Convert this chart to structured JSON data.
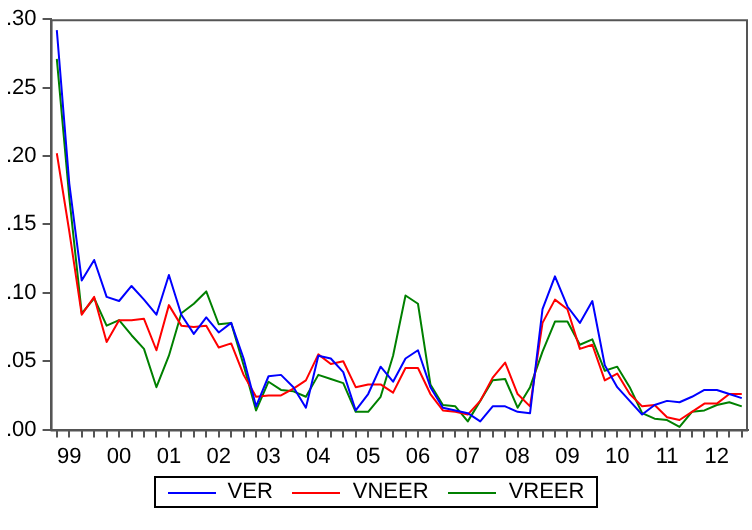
{
  "chart_data": {
    "type": "line",
    "categories": [
      null,
      "99",
      null,
      null,
      null,
      "00",
      null,
      null,
      null,
      "01",
      null,
      null,
      null,
      "02",
      null,
      null,
      null,
      "03",
      null,
      null,
      null,
      "04",
      null,
      null,
      null,
      "05",
      null,
      null,
      null,
      "06",
      null,
      null,
      null,
      "07",
      null,
      null,
      null,
      "08",
      null,
      null,
      null,
      "09",
      null,
      null,
      null,
      "10",
      null,
      null,
      null,
      "11",
      null,
      null,
      null,
      "12",
      null,
      null
    ],
    "series": [
      {
        "name": "VER",
        "color": "#0000ff",
        "values": [
          0.292,
          0.18,
          0.109,
          0.124,
          0.097,
          0.094,
          0.105,
          0.095,
          0.084,
          0.113,
          0.084,
          0.07,
          0.082,
          0.071,
          0.078,
          0.052,
          0.017,
          0.039,
          0.04,
          0.031,
          0.016,
          0.054,
          0.052,
          0.042,
          0.014,
          0.026,
          0.046,
          0.035,
          0.052,
          0.058,
          0.031,
          0.016,
          0.014,
          0.012,
          0.006,
          0.017,
          0.017,
          0.013,
          0.012,
          0.088,
          0.112,
          0.09,
          0.078,
          0.094,
          0.047,
          0.031,
          0.021,
          0.011,
          0.018,
          0.021,
          0.02,
          0.024,
          0.029,
          0.029,
          0.026,
          0.023
        ]
      },
      {
        "name": "VNEER",
        "color": "#ff0000",
        "values": [
          0.202,
          0.145,
          0.084,
          0.097,
          0.064,
          0.08,
          0.08,
          0.081,
          0.058,
          0.091,
          0.076,
          0.075,
          0.076,
          0.06,
          0.063,
          0.04,
          0.024,
          0.025,
          0.025,
          0.03,
          0.036,
          0.055,
          0.048,
          0.05,
          0.031,
          0.033,
          0.033,
          0.027,
          0.045,
          0.045,
          0.026,
          0.014,
          0.013,
          0.011,
          0.021,
          0.038,
          0.049,
          0.026,
          0.017,
          0.078,
          0.095,
          0.088,
          0.059,
          0.062,
          0.036,
          0.041,
          0.026,
          0.017,
          0.018,
          0.009,
          0.007,
          0.013,
          0.019,
          0.019,
          0.026,
          0.026
        ]
      },
      {
        "name": "VREER",
        "color": "#008000",
        "values": [
          0.271,
          0.17,
          0.085,
          0.096,
          0.076,
          0.08,
          0.069,
          0.059,
          0.031,
          0.054,
          0.085,
          0.092,
          0.101,
          0.077,
          0.078,
          0.047,
          0.014,
          0.035,
          0.029,
          0.028,
          0.024,
          0.04,
          0.037,
          0.034,
          0.013,
          0.013,
          0.024,
          0.054,
          0.098,
          0.092,
          0.033,
          0.018,
          0.017,
          0.006,
          0.021,
          0.036,
          0.037,
          0.016,
          0.031,
          0.057,
          0.079,
          0.079,
          0.062,
          0.066,
          0.043,
          0.046,
          0.031,
          0.012,
          0.008,
          0.007,
          0.002,
          0.013,
          0.014,
          0.018,
          0.02,
          0.017
        ]
      }
    ],
    "ylim": [
      0,
      0.3
    ],
    "yticks": [
      {
        "value": 0,
        "label": ".00"
      },
      {
        "value": 0.05,
        "label": ".05"
      },
      {
        "value": 0.1,
        "label": ".10"
      },
      {
        "value": 0.15,
        "label": ".15"
      },
      {
        "value": 0.2,
        "label": ".20"
      },
      {
        "value": 0.25,
        "label": ".25"
      },
      {
        "value": 0.3,
        "label": ".30"
      }
    ],
    "legend": "bottom",
    "marker": "none",
    "line_style": "solid"
  }
}
